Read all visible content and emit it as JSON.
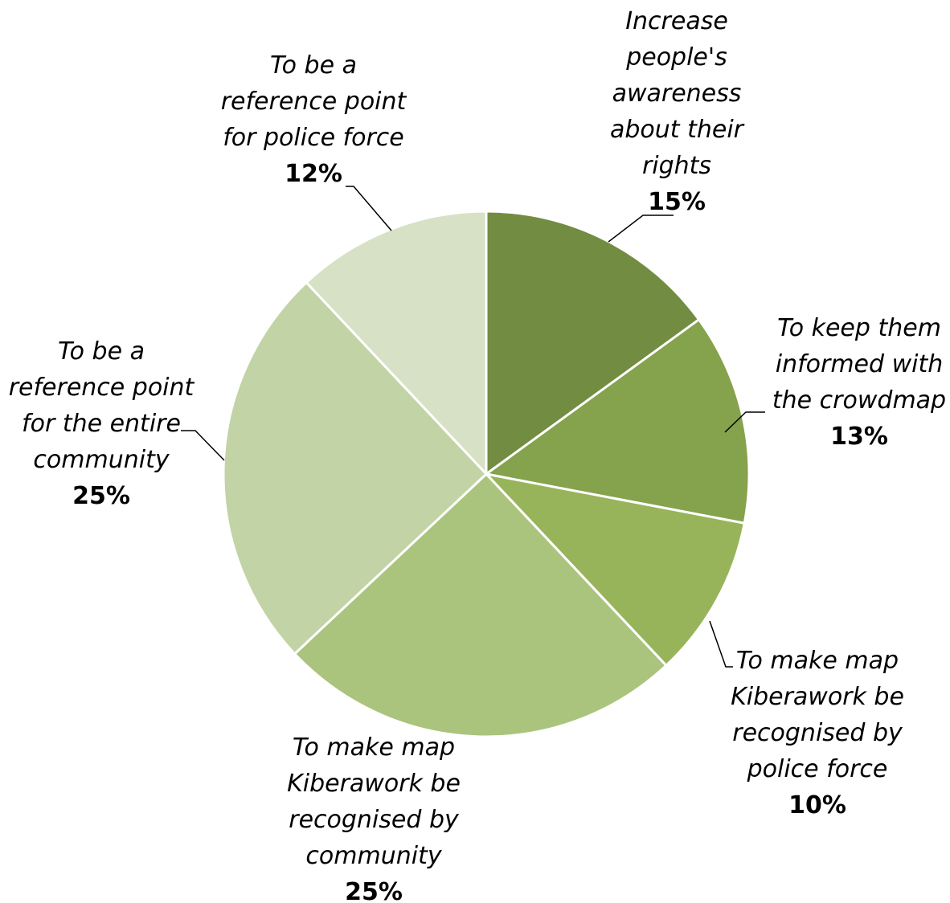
{
  "chart_data": {
    "type": "pie",
    "start_angle_deg": 0,
    "direction": "clockwise",
    "legend": "none",
    "slices": [
      {
        "label": "Increase people's awareness about their rights",
        "lines": [
          "Increase",
          "people's",
          "awareness",
          "about their",
          "rights"
        ],
        "value": 15,
        "pct_label": "15%",
        "color": "#728c41"
      },
      {
        "label": "To keep them informed with the crowdmap",
        "lines": [
          "To keep them",
          "informed with",
          "the crowdmap"
        ],
        "value": 13,
        "pct_label": "13%",
        "color": "#85a24c"
      },
      {
        "label": "To make map Kiberawork be recognised by police force",
        "lines": [
          "To make map",
          "Kiberawork be",
          "recognised by",
          "police force"
        ],
        "value": 10,
        "pct_label": "10%",
        "color": "#98b45b"
      },
      {
        "label": "To make map Kiberawork be recognised by community",
        "lines": [
          "To make map",
          "Kiberawork be",
          "recognised by",
          "community"
        ],
        "value": 25,
        "pct_label": "25%",
        "color": "#aac47e"
      },
      {
        "label": "To be a reference point for the entire community",
        "lines": [
          "To be a",
          "reference point",
          "for the entire",
          "community"
        ],
        "value": 25,
        "pct_label": "25%",
        "color": "#c2d3a5"
      },
      {
        "label": "To be a reference point for police force",
        "lines": [
          "To be a",
          "reference point",
          "for police force"
        ],
        "value": 12,
        "pct_label": "12%",
        "color": "#d7e1c5"
      }
    ]
  }
}
